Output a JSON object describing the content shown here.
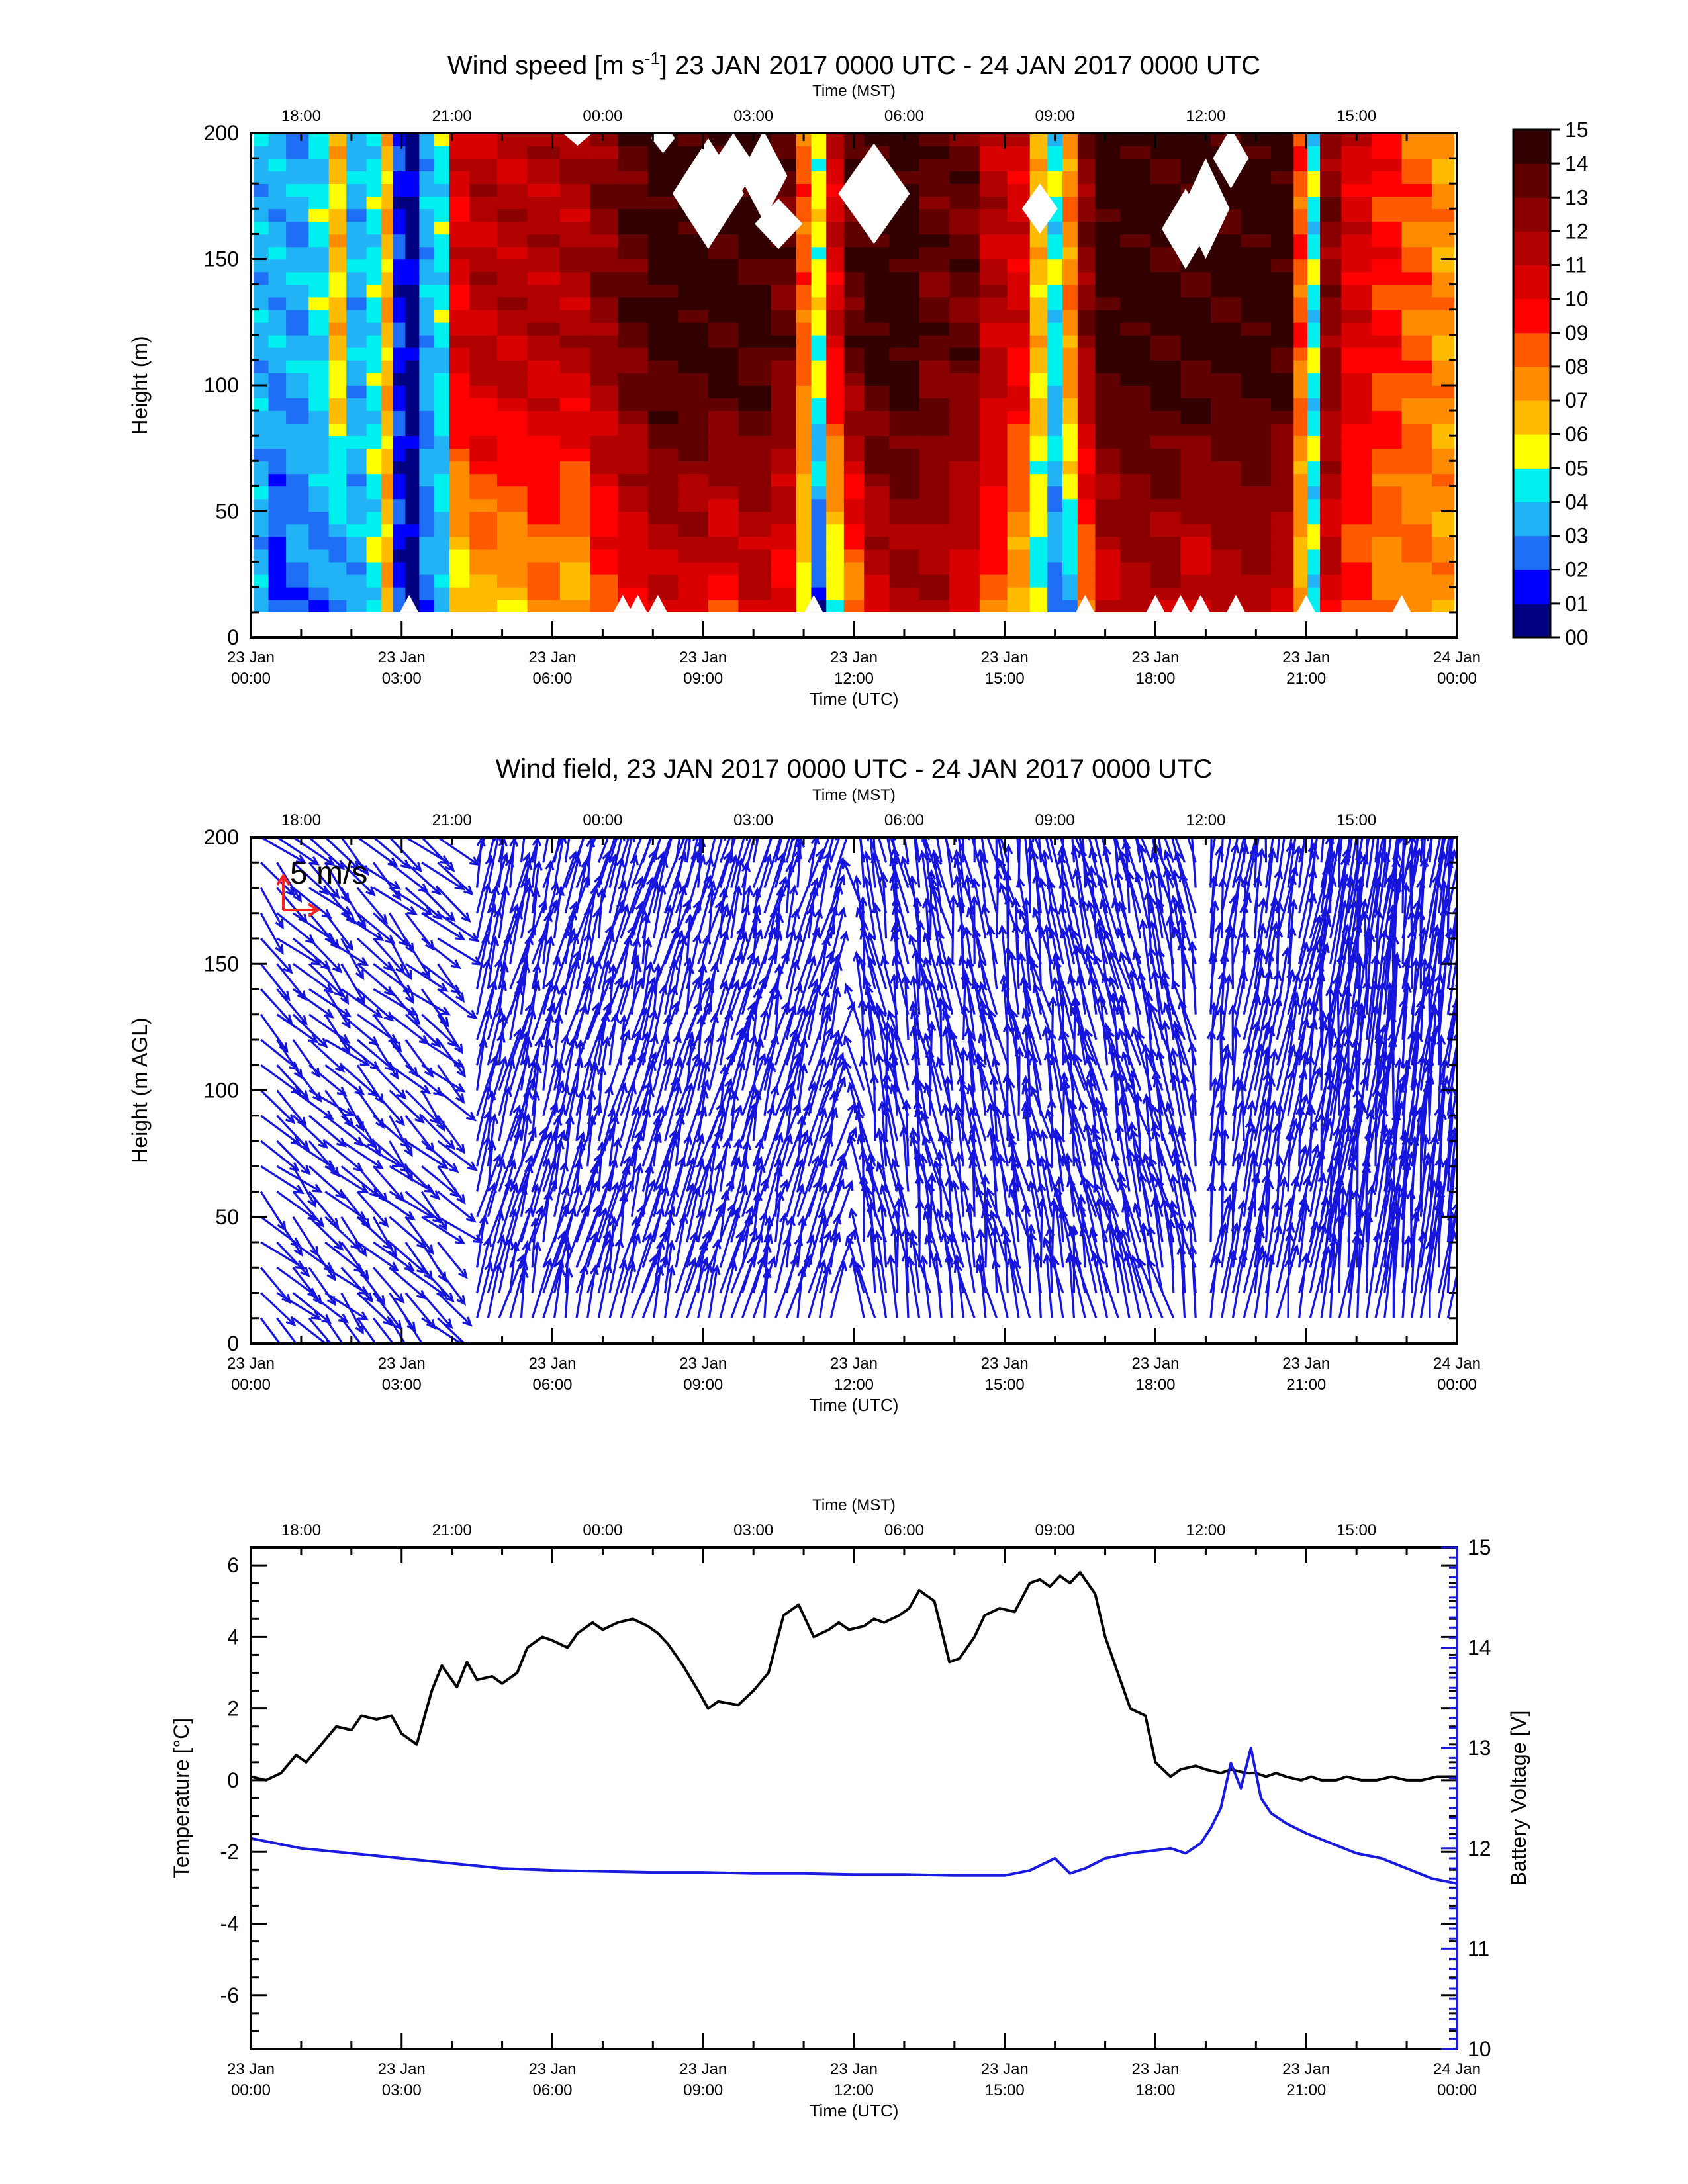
{
  "utc_ticks": [
    {
      "day": "23 Jan",
      "time": "00:00"
    },
    {
      "day": "23 Jan",
      "time": "03:00"
    },
    {
      "day": "23 Jan",
      "time": "06:00"
    },
    {
      "day": "23 Jan",
      "time": "09:00"
    },
    {
      "day": "23 Jan",
      "time": "12:00"
    },
    {
      "day": "23 Jan",
      "time": "15:00"
    },
    {
      "day": "23 Jan",
      "time": "18:00"
    },
    {
      "day": "23 Jan",
      "time": "21:00"
    },
    {
      "day": "24 Jan",
      "time": "00:00"
    }
  ],
  "mst_ticks": [
    "18:00",
    "21:00",
    "00:00",
    "03:00",
    "06:00",
    "09:00",
    "12:00",
    "15:00"
  ],
  "utc_label": "Time (UTC)",
  "mst_label": "Time (MST)",
  "colors": {
    "palette": [
      "#000080",
      "#0000ff",
      "#1e6ff5",
      "#21b3f5",
      "#00f0f0",
      "#ffff00",
      "#ffbb00",
      "#ff8c00",
      "#ff5a00",
      "#ff0000",
      "#d80000",
      "#b00000",
      "#8a0000",
      "#600000",
      "#330000"
    ],
    "quiver": "#1515dd",
    "reference": "#ff2020",
    "temperature": "#000000",
    "voltage": "#1a1adf"
  },
  "chart_data": [
    {
      "type": "heatmap",
      "title": "Wind speed [m s-1] 23 JAN 2017 0000 UTC - 24 JAN 2017 0000 UTC",
      "xlabel": "Time (UTC)",
      "ylabel": "Height (m)",
      "xlim": [
        0,
        24
      ],
      "ylim": [
        0,
        200
      ],
      "yticks": [
        0,
        50,
        100,
        150,
        200
      ],
      "colorbar": {
        "levels": [
          "00",
          "01",
          "02",
          "03",
          "04",
          "05",
          "06",
          "07",
          "08",
          "09",
          "10",
          "11",
          "12",
          "13",
          "14",
          "15"
        ]
      },
      "heights": [
        10,
        200
      ],
      "columns": [
        {
          "t": 0.2,
          "low": 3,
          "high": 3
        },
        {
          "t": 0.5,
          "low": 1,
          "high": 3
        },
        {
          "t": 0.9,
          "low": 2,
          "high": 3
        },
        {
          "t": 1.4,
          "low": 2,
          "high": 4
        },
        {
          "t": 1.7,
          "low": 2,
          "high": 6
        },
        {
          "t": 2.1,
          "low": 3,
          "high": 3
        },
        {
          "t": 2.5,
          "low": 4,
          "high": 4
        },
        {
          "t": 2.7,
          "low": 6,
          "high": 6
        },
        {
          "t": 2.95,
          "low": 1,
          "high": 1
        },
        {
          "t": 3.2,
          "low": 0,
          "high": 0
        },
        {
          "t": 3.5,
          "low": 2,
          "high": 3
        },
        {
          "t": 3.8,
          "low": 3,
          "high": 4
        },
        {
          "t": 4.1,
          "low": 5,
          "high": 10
        },
        {
          "t": 4.6,
          "low": 6,
          "high": 11
        },
        {
          "t": 5.2,
          "low": 6,
          "high": 11
        },
        {
          "t": 5.8,
          "low": 7,
          "high": 11
        },
        {
          "t": 6.5,
          "low": 6,
          "high": 11
        },
        {
          "t": 7.0,
          "low": 8,
          "high": 12
        },
        {
          "t": 7.6,
          "low": 9,
          "high": 13
        },
        {
          "t": 8.2,
          "low": 10,
          "high": 14
        },
        {
          "t": 8.8,
          "low": 10,
          "high": 14
        },
        {
          "t": 9.4,
          "low": 9,
          "high": 14
        },
        {
          "t": 10.0,
          "low": 10,
          "high": 14
        },
        {
          "t": 10.7,
          "low": 9,
          "high": 13
        },
        {
          "t": 11.0,
          "low": 5,
          "high": 8
        },
        {
          "t": 11.3,
          "low": 1,
          "high": 5
        },
        {
          "t": 11.6,
          "low": 4,
          "high": 10
        },
        {
          "t": 12.0,
          "low": 7,
          "high": 13
        },
        {
          "t": 12.4,
          "low": 10,
          "high": 14
        },
        {
          "t": 13.0,
          "low": 11,
          "high": 14
        },
        {
          "t": 13.6,
          "low": 11,
          "high": 13
        },
        {
          "t": 14.2,
          "low": 10,
          "high": 13
        },
        {
          "t": 14.8,
          "low": 8,
          "high": 11
        },
        {
          "t": 15.3,
          "low": 6,
          "high": 10
        },
        {
          "t": 15.7,
          "low": 4,
          "high": 6
        },
        {
          "t": 16.0,
          "low": 2,
          "high": 4
        },
        {
          "t": 16.3,
          "low": 3,
          "high": 7
        },
        {
          "t": 16.6,
          "low": 7,
          "high": 12
        },
        {
          "t": 17.0,
          "low": 10,
          "high": 14
        },
        {
          "t": 17.6,
          "low": 11,
          "high": 14
        },
        {
          "t": 18.2,
          "low": 11,
          "high": 14
        },
        {
          "t": 18.8,
          "low": 10,
          "high": 14
        },
        {
          "t": 19.4,
          "low": 11,
          "high": 14
        },
        {
          "t": 20.0,
          "low": 11,
          "high": 14
        },
        {
          "t": 20.6,
          "low": 10,
          "high": 14
        },
        {
          "t": 20.9,
          "low": 6,
          "high": 8
        },
        {
          "t": 21.15,
          "low": 4,
          "high": 4
        },
        {
          "t": 21.4,
          "low": 10,
          "high": 12
        },
        {
          "t": 22.0,
          "low": 8,
          "high": 10
        },
        {
          "t": 22.6,
          "low": 7,
          "high": 9
        },
        {
          "t": 23.2,
          "low": 7,
          "high": 8
        },
        {
          "t": 23.8,
          "low": 7,
          "high": 7
        }
      ]
    },
    {
      "type": "scatter",
      "title": "Wind field, 23 JAN 2017 0000 UTC - 24 JAN 2017 0000 UTC",
      "xlabel": "Time (UTC)",
      "ylabel": "Height (m AGL)",
      "xlim": [
        0,
        24
      ],
      "ylim": [
        0,
        200
      ],
      "yticks": [
        0,
        50,
        100,
        150,
        200
      ],
      "reference": "5 m/s",
      "heights": [
        10,
        200
      ],
      "segments": [
        {
          "t0": 0.2,
          "t1": 3.9,
          "dt": 0.32,
          "u": 3.5,
          "v": -3.5
        },
        {
          "t0": 4.5,
          "t1": 11.7,
          "dt": 0.22,
          "u": 1.5,
          "v": 6.0
        },
        {
          "t0": 12.2,
          "t1": 16.4,
          "dt": 0.22,
          "u": -1.0,
          "v": 6.5
        },
        {
          "t0": 16.6,
          "t1": 18.9,
          "dt": 0.22,
          "u": -1.5,
          "v": 7.0
        },
        {
          "t0": 19.1,
          "t1": 21.2,
          "dt": 0.22,
          "u": 1.0,
          "v": 7.0
        },
        {
          "t0": 21.3,
          "t1": 23.9,
          "dt": 0.18,
          "u": 1.0,
          "v": 9.0
        }
      ]
    },
    {
      "type": "line",
      "xlabel": "Time (UTC)",
      "ylabel": "Temperature [°C]",
      "ylabel_right": "Battery Voltage [V]",
      "xlim": [
        0,
        24
      ],
      "ylim": [
        -7.5,
        6.5
      ],
      "yticks": [
        -6,
        -4,
        -2,
        0,
        2,
        4,
        6
      ],
      "ylim_right": [
        10,
        15
      ],
      "yticks_right": [
        10,
        11,
        12,
        13,
        14,
        15
      ],
      "series": [
        {
          "axis": "left",
          "x": [
            0.0,
            0.3,
            0.6,
            0.9,
            1.1,
            1.4,
            1.7,
            2.0,
            2.2,
            2.5,
            2.8,
            3.0,
            3.3,
            3.6,
            3.8,
            4.1,
            4.3,
            4.5,
            4.8,
            5.0,
            5.3,
            5.5,
            5.8,
            6.0,
            6.3,
            6.5,
            6.8,
            7.0,
            7.3,
            7.6,
            7.9,
            8.1,
            8.3,
            8.6,
            8.9,
            9.1,
            9.3,
            9.7,
            10.0,
            10.3,
            10.6,
            10.9,
            11.2,
            11.5,
            11.7,
            11.9,
            12.2,
            12.4,
            12.6,
            12.9,
            13.1,
            13.3,
            13.6,
            13.9,
            14.1,
            14.4,
            14.6,
            14.9,
            15.2,
            15.5,
            15.7,
            15.9,
            16.1,
            16.3,
            16.5,
            16.8,
            17.0,
            17.3,
            17.5,
            17.8,
            18.0,
            18.3,
            18.5,
            18.8,
            19.0,
            19.3,
            19.5,
            19.8,
            20.0,
            20.2,
            20.4,
            20.6,
            20.9,
            21.1,
            21.3,
            21.6,
            21.8,
            22.1,
            22.4,
            22.7,
            23.0,
            23.3,
            23.6,
            24.0
          ],
          "y": [
            0.1,
            0.0,
            0.2,
            0.7,
            0.5,
            1.0,
            1.5,
            1.4,
            1.8,
            1.7,
            1.8,
            1.3,
            1.0,
            2.5,
            3.2,
            2.6,
            3.3,
            2.8,
            2.9,
            2.7,
            3.0,
            3.7,
            4.0,
            3.9,
            3.7,
            4.1,
            4.4,
            4.2,
            4.4,
            4.5,
            4.3,
            4.1,
            3.8,
            3.2,
            2.5,
            2.0,
            2.2,
            2.1,
            2.5,
            3.0,
            4.6,
            4.9,
            4.0,
            4.2,
            4.4,
            4.2,
            4.3,
            4.5,
            4.4,
            4.6,
            4.8,
            5.3,
            5.0,
            3.3,
            3.4,
            4.0,
            4.6,
            4.8,
            4.7,
            5.5,
            5.6,
            5.4,
            5.7,
            5.5,
            5.8,
            5.2,
            4.0,
            2.8,
            2.0,
            1.8,
            0.5,
            0.1,
            0.3,
            0.4,
            0.3,
            0.2,
            0.3,
            0.2,
            0.2,
            0.1,
            0.2,
            0.1,
            0.0,
            0.1,
            0.0,
            0.0,
            0.1,
            0.0,
            0.0,
            0.1,
            0.0,
            0.0,
            0.1,
            0.1
          ]
        },
        {
          "axis": "right",
          "x": [
            0.0,
            1.0,
            2.0,
            3.0,
            4.0,
            5.0,
            6.0,
            7.0,
            8.0,
            9.0,
            10.0,
            11.0,
            12.0,
            13.0,
            14.0,
            15.0,
            15.5,
            16.0,
            16.3,
            16.6,
            17.0,
            17.5,
            18.0,
            18.3,
            18.6,
            18.9,
            19.1,
            19.3,
            19.5,
            19.7,
            19.9,
            20.1,
            20.3,
            20.6,
            21.0,
            21.5,
            22.0,
            22.5,
            23.0,
            23.5,
            24.0
          ],
          "y": [
            12.1,
            12.0,
            11.95,
            11.9,
            11.85,
            11.8,
            11.78,
            11.77,
            11.76,
            11.76,
            11.75,
            11.75,
            11.74,
            11.74,
            11.73,
            11.73,
            11.78,
            11.9,
            11.75,
            11.8,
            11.9,
            11.95,
            11.98,
            12.0,
            11.95,
            12.05,
            12.2,
            12.4,
            12.85,
            12.6,
            13.0,
            12.5,
            12.35,
            12.25,
            12.15,
            12.05,
            11.95,
            11.9,
            11.8,
            11.7,
            11.65
          ]
        }
      ]
    }
  ]
}
